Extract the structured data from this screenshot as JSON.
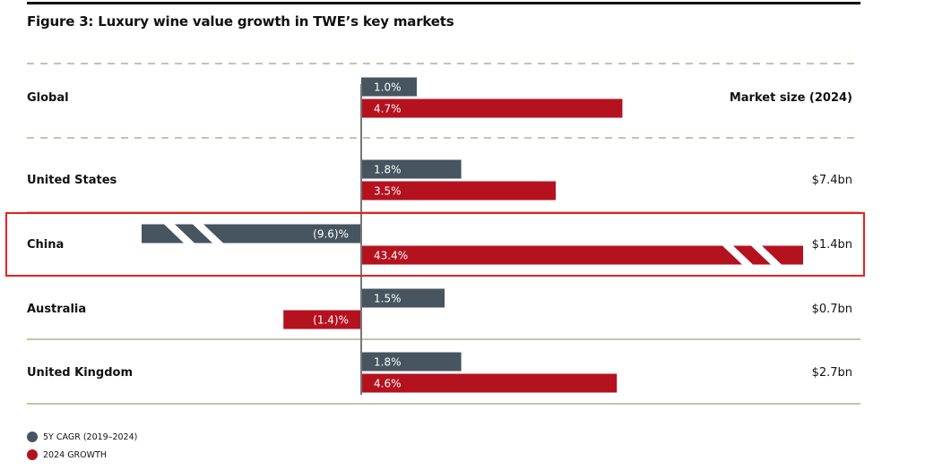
{
  "title": "Figure 3:  Luxury wine value growth in TWE’s key markets",
  "colors": {
    "cagr": "#46555f",
    "growth": "#b5121f",
    "highlight": "#e8221b",
    "divider": "#c4c4ac",
    "text": "#111111"
  },
  "chart_data": {
    "type": "bar",
    "orientation": "horizontal",
    "title": "Figure 3:  Luxury wine value growth in TWE’s key markets",
    "xlabel": "",
    "ylabel": "",
    "market_size_header": "Market size (2024)",
    "categories": [
      "Global",
      "United States",
      "China",
      "Australia",
      "United Kingdom"
    ],
    "series": [
      {
        "name": "5Y CAGR (2019–2024)",
        "key": "cagr",
        "values": [
          1.0,
          1.8,
          -9.6,
          1.5,
          1.8
        ],
        "labels": [
          "1.0%",
          "1.8%",
          "(9.6)%",
          "1.5%",
          "1.8%"
        ]
      },
      {
        "name": "2024 GROWTH",
        "key": "growth",
        "values": [
          4.7,
          3.5,
          43.4,
          -1.4,
          4.6
        ],
        "labels": [
          "4.7%",
          "3.5%",
          "43.4%",
          "(1.4)%",
          "4.6%"
        ]
      }
    ],
    "market_size": [
      "",
      "$7.4bn",
      "$1.4bn",
      "$0.7bn",
      "$2.7bn"
    ],
    "broken_axis_bars": [
      "China"
    ],
    "highlighted_category": "China",
    "legend": [
      "5Y CAGR (2019–2024)",
      "2024 GROWTH"
    ],
    "legend_position": "bottom-left",
    "grid": false
  }
}
